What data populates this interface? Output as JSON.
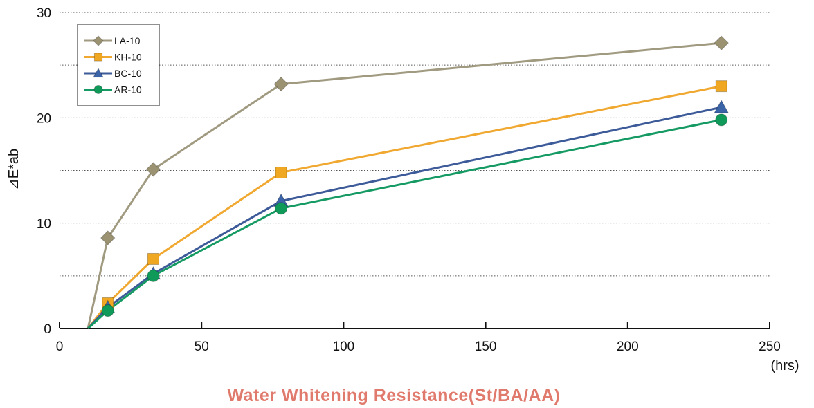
{
  "chart_data": {
    "type": "line",
    "title": "",
    "xlabel": "",
    "x_unit_label": "(hrs)",
    "ylabel": "⊿E*ab",
    "footer_title": "Water Whitening Resistance(St/BA/AA)",
    "xlim": [
      0,
      250
    ],
    "ylim": [
      0,
      30
    ],
    "x_ticks": [
      0,
      50,
      100,
      150,
      200,
      250
    ],
    "y_ticks": [
      0,
      10,
      20,
      30
    ],
    "y_tick_labels": [
      "0",
      "10",
      "20",
      "30"
    ],
    "x_tick_labels": [
      "0",
      "50",
      "100",
      "150",
      "200",
      "250"
    ],
    "grid": "horizontal dotted at every 5 units",
    "legend_position": "top-left",
    "series": [
      {
        "name": "LA-10",
        "marker": "diamond",
        "color": "#9a9270",
        "line_color": "#a09a80",
        "x": [
          10,
          17,
          33,
          78,
          233
        ],
        "y": [
          0,
          8.6,
          15.1,
          23.2,
          27.1
        ]
      },
      {
        "name": "KH-10",
        "marker": "square",
        "color": "#f0a822",
        "line_color": "#f0a830",
        "x": [
          10,
          17,
          33,
          78,
          233
        ],
        "y": [
          0,
          2.4,
          6.6,
          14.8,
          23.0
        ]
      },
      {
        "name": "BC-10",
        "marker": "triangle",
        "color": "#3b63a8",
        "line_color": "#3d5a99",
        "x": [
          10,
          17,
          33,
          78,
          233
        ],
        "y": [
          0,
          2.0,
          5.2,
          12.1,
          21.0
        ]
      },
      {
        "name": "AR-10",
        "marker": "circle",
        "color": "#0f9a5a",
        "line_color": "#169a63",
        "x": [
          10,
          17,
          33,
          78,
          233
        ],
        "y": [
          0,
          1.7,
          5.0,
          11.4,
          19.8
        ]
      }
    ],
    "footer_color": "#e07a6c"
  }
}
